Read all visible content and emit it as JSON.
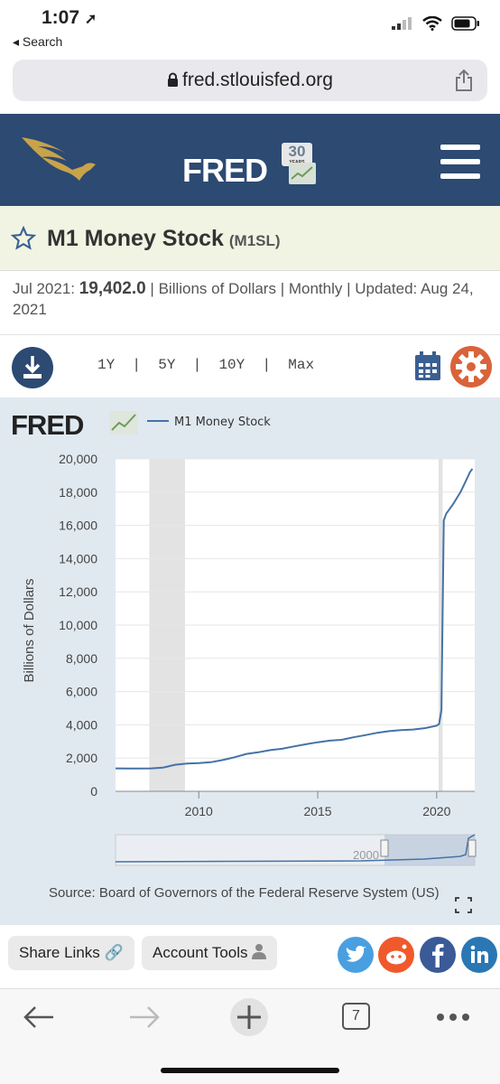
{
  "status": {
    "time": "1:07",
    "back_label": "◂ Search"
  },
  "browser": {
    "url": "fred.stlouisfed.org"
  },
  "header": {
    "logo_text": "FRED",
    "anniversary_top": "30",
    "anniversary_bottom": "YEARS"
  },
  "series": {
    "title": "M1 Money Stock",
    "code": "(M1SL)"
  },
  "meta": {
    "date": "Jul 2021:",
    "value": "19,402.0",
    "units": "Billions of Dollars",
    "frequency": "Monthly",
    "updated_label": "Updated:",
    "updated_date": "Aug 24, 2021"
  },
  "ranges": [
    "1Y",
    "5Y",
    "10Y",
    "Max"
  ],
  "chart_data": {
    "type": "line",
    "legend": "M1 Money Stock",
    "ylabel": "Billions of Dollars",
    "xlabel": "",
    "xlim": [
      2006.5,
      2021.6
    ],
    "ylim": [
      0,
      20000
    ],
    "yticks": [
      0,
      2000,
      4000,
      6000,
      8000,
      10000,
      12000,
      14000,
      16000,
      18000,
      20000
    ],
    "ytick_labels": [
      "0",
      "2,000",
      "4,000",
      "6,000",
      "8,000",
      "10,000",
      "12,000",
      "14,000",
      "16,000",
      "18,000",
      "20,000"
    ],
    "xticks": [
      2010,
      2015,
      2020
    ],
    "recessions": [
      [
        2007.92,
        2009.42
      ],
      [
        2020.08,
        2020.25
      ]
    ],
    "series": [
      {
        "name": "M1 Money Stock",
        "x": [
          2006.5,
          2007.0,
          2007.5,
          2008.0,
          2008.5,
          2009.0,
          2009.5,
          2010.0,
          2010.5,
          2011.0,
          2011.5,
          2012.0,
          2012.5,
          2013.0,
          2013.5,
          2014.0,
          2014.5,
          2015.0,
          2015.5,
          2016.0,
          2016.5,
          2017.0,
          2017.5,
          2018.0,
          2018.5,
          2019.0,
          2019.5,
          2020.0,
          2020.1,
          2020.2,
          2020.3,
          2020.4,
          2020.7,
          2021.0,
          2021.2,
          2021.4,
          2021.5
        ],
        "y": [
          1380,
          1370,
          1370,
          1380,
          1430,
          1600,
          1670,
          1700,
          1750,
          1880,
          2050,
          2250,
          2350,
          2480,
          2560,
          2700,
          2830,
          2950,
          3050,
          3100,
          3250,
          3380,
          3520,
          3620,
          3680,
          3720,
          3800,
          3950,
          4050,
          4900,
          16300,
          16700,
          17300,
          18000,
          18600,
          19200,
          19402
        ]
      }
    ],
    "navigator_label": "2000",
    "source": "Source: Board of Governors of the Federal Reserve System (US)"
  },
  "footer": {
    "share_label": "Share Links",
    "account_label": "Account Tools"
  },
  "toolbar": {
    "tab_count": "7"
  }
}
